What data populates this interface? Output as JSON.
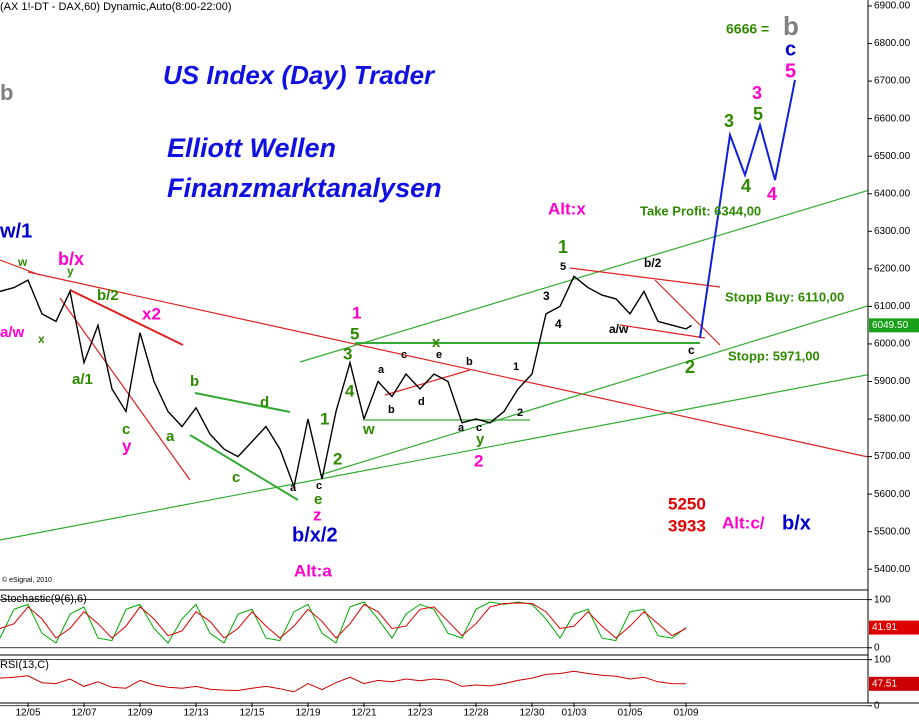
{
  "header": "(AX 1!-DT - DAX,60) Dynamic,Auto(8:00-22:00)",
  "banner": [
    "US Index (Day) Trader",
    "Elliott Wellen",
    "Finanzmarktanalysen"
  ],
  "copyright": "© eSignal, 2010",
  "annotations": [
    {
      "text": "6666 =",
      "color": "#2e8b00"
    },
    {
      "text": "b",
      "color": "#808080"
    },
    {
      "text": "c",
      "color": "#0000cc"
    },
    {
      "text": "5",
      "color": "#ff00cc"
    },
    {
      "text": "3",
      "color": "#ff00cc"
    },
    {
      "text": "3",
      "color": "#2e8b00"
    },
    {
      "text": "5",
      "color": "#2e8b00"
    },
    {
      "text": "4",
      "color": "#2e8b00"
    },
    {
      "text": "4",
      "color": "#ff00cc"
    },
    {
      "text": "Take Profit: 6344,00",
      "color": "#2e8b00"
    },
    {
      "text": "Alt:x",
      "color": "#ff00cc"
    },
    {
      "text": "1",
      "color": "#2e8b00"
    },
    {
      "text": "5",
      "color": "#000000"
    },
    {
      "text": "b/2",
      "color": "#000000"
    },
    {
      "text": "3",
      "color": "#000000"
    },
    {
      "text": "4",
      "color": "#000000"
    },
    {
      "text": "a/w",
      "color": "#000000"
    },
    {
      "text": "Stopp Buy: 6110,00",
      "color": "#2e8b00"
    },
    {
      "text": "c",
      "color": "#000000"
    },
    {
      "text": "Stopp: 5971,00",
      "color": "#2e8b00"
    },
    {
      "text": "2",
      "color": "#2e8b00"
    },
    {
      "text": "w/1",
      "color": "#0000cc"
    },
    {
      "text": "w",
      "color": "#2e8b00"
    },
    {
      "text": "b/x",
      "color": "#ff00cc"
    },
    {
      "text": "y",
      "color": "#2e8b00"
    },
    {
      "text": "b/2",
      "color": "#2e8b00"
    },
    {
      "text": "x2",
      "color": "#ff00cc"
    },
    {
      "text": "a/w",
      "color": "#ff00cc"
    },
    {
      "text": "x",
      "color": "#2e8b00"
    },
    {
      "text": "a/1",
      "color": "#2e8b00"
    },
    {
      "text": "c",
      "color": "#2e8b00"
    },
    {
      "text": "y",
      "color": "#ff00cc"
    },
    {
      "text": "b",
      "color": "#2e8b00"
    },
    {
      "text": "d",
      "color": "#2e8b00"
    },
    {
      "text": "a",
      "color": "#2e8b00"
    },
    {
      "text": "c",
      "color": "#2e8b00"
    },
    {
      "text": "1",
      "color": "#ff00cc"
    },
    {
      "text": "5",
      "color": "#2e8b00"
    },
    {
      "text": "3",
      "color": "#2e8b00"
    },
    {
      "text": "4",
      "color": "#2e8b00"
    },
    {
      "text": "1",
      "color": "#2e8b00"
    },
    {
      "text": "2",
      "color": "#2e8b00"
    },
    {
      "text": "w",
      "color": "#2e8b00"
    },
    {
      "text": "x",
      "color": "#2e8b00"
    },
    {
      "text": "c",
      "color": "#000000"
    },
    {
      "text": "a",
      "color": "#000000"
    },
    {
      "text": "e",
      "color": "#000000"
    },
    {
      "text": "b",
      "color": "#000000"
    },
    {
      "text": "b",
      "color": "#000000"
    },
    {
      "text": "d",
      "color": "#000000"
    },
    {
      "text": "a",
      "color": "#000000"
    },
    {
      "text": "c",
      "color": "#000000"
    },
    {
      "text": "y",
      "color": "#2e8b00"
    },
    {
      "text": "2",
      "color": "#ff00cc"
    },
    {
      "text": "1",
      "color": "#000000"
    },
    {
      "text": "2",
      "color": "#000000"
    },
    {
      "text": "a",
      "color": "#000000"
    },
    {
      "text": "c",
      "color": "#000000"
    },
    {
      "text": "e",
      "color": "#2e8b00"
    },
    {
      "text": "z",
      "color": "#ff00cc"
    },
    {
      "text": "b/x/2",
      "color": "#0000cc"
    },
    {
      "text": "Alt:a",
      "color": "#ff00cc"
    },
    {
      "text": "5250",
      "color": "#e00000"
    },
    {
      "text": "3933",
      "color": "#e00000"
    },
    {
      "text": "Alt:c/",
      "color": "#ff00cc"
    },
    {
      "text": "b/x",
      "color": "#0000cc"
    },
    {
      "text": "b",
      "color": "#808080"
    }
  ],
  "chart_data": [
    {
      "type": "line",
      "title": "DAX 60",
      "x": [
        -1,
        -0.5,
        0,
        0.5,
        1,
        1.5,
        2,
        2.5,
        3,
        3.5,
        4,
        4.5,
        5,
        5.5,
        6,
        6.5,
        7,
        7.5,
        8,
        8.5,
        9,
        9.5,
        10,
        10.5,
        11,
        11.5,
        12,
        12.5,
        13,
        13.5,
        14,
        14.5,
        15,
        15.5,
        16,
        16.5,
        17,
        17.5,
        18,
        18.5,
        19,
        19.5,
        20,
        20.5,
        21,
        21.5,
        22,
        22.5,
        23,
        23.5,
        23.7
      ],
      "values": [
        6140,
        6150,
        6170,
        6080,
        6060,
        6140,
        5950,
        6050,
        5880,
        5820,
        6030,
        5900,
        5820,
        5780,
        5830,
        5760,
        5720,
        5700,
        5740,
        5780,
        5720,
        5620,
        5800,
        5640,
        5820,
        5950,
        5800,
        5900,
        5860,
        5920,
        5880,
        5920,
        5900,
        5790,
        5800,
        5790,
        5820,
        5880,
        5920,
        6080,
        6100,
        6180,
        6150,
        6130,
        6120,
        6080,
        6140,
        6060,
        6050,
        6040,
        6049.5
      ],
      "color": "#000000",
      "last": {
        "value": 6049.5,
        "label": "6049.50"
      },
      "xlim": [
        -1,
        30
      ],
      "xticks": [
        {
          "value": 0,
          "label": "12/05"
        },
        {
          "value": 2,
          "label": "12/07"
        },
        {
          "value": 4,
          "label": "12/09"
        },
        {
          "value": 6,
          "label": "12/13"
        },
        {
          "value": 8,
          "label": "12/15"
        },
        {
          "value": 10,
          "label": "12/19"
        },
        {
          "value": 12,
          "label": "12/21"
        },
        {
          "value": 14,
          "label": "12/23"
        },
        {
          "value": 16,
          "label": "12/28"
        },
        {
          "value": 18,
          "label": "12/30"
        },
        {
          "value": 19.5,
          "label": "01/03"
        },
        {
          "value": 21.5,
          "label": "01/05"
        },
        {
          "value": 23.5,
          "label": "01/09"
        }
      ],
      "ylim": [
        5350,
        6916
      ],
      "yticks": [
        {
          "value": 5400,
          "label": "5400.00"
        },
        {
          "value": 5500,
          "label": "5500.00"
        },
        {
          "value": 5600,
          "label": "5600.00"
        },
        {
          "value": 5700,
          "label": "5700.00"
        },
        {
          "value": 5800,
          "label": "5800.00"
        },
        {
          "value": 5900,
          "label": "5900.00"
        },
        {
          "value": 6000,
          "label": "6000.00"
        },
        {
          "value": 6100,
          "label": "6100.00"
        },
        {
          "value": 6200,
          "label": "6200.00"
        },
        {
          "value": 6300,
          "label": "6300.00"
        },
        {
          "value": 6400,
          "label": "6400.00"
        },
        {
          "value": 6500,
          "label": "6500.00"
        },
        {
          "value": 6600,
          "label": "6600.00"
        },
        {
          "value": 6700,
          "label": "6700.00"
        },
        {
          "value": 6800,
          "label": "6800.00"
        },
        {
          "value": 6900,
          "label": "6900.00"
        }
      ]
    },
    {
      "type": "line",
      "title": "Stochastic(9(6),6)",
      "x": [
        -1,
        -0.5,
        0,
        0.5,
        1,
        1.5,
        2,
        2.5,
        3,
        3.5,
        4,
        4.5,
        5,
        5.5,
        6,
        6.5,
        7,
        7.5,
        8,
        8.5,
        9,
        9.5,
        10,
        10.5,
        11,
        11.5,
        12,
        12.5,
        13,
        13.5,
        14,
        14.5,
        15,
        15.5,
        16,
        16.5,
        17,
        17.5,
        18,
        18.5,
        19,
        19.5,
        20,
        20.5,
        21,
        21.5,
        22,
        22.5,
        23,
        23.5
      ],
      "series": [
        {
          "color": "#00aa00",
          "values": [
            20,
            80,
            90,
            30,
            10,
            70,
            85,
            20,
            15,
            80,
            90,
            40,
            10,
            60,
            90,
            30,
            10,
            70,
            80,
            20,
            15,
            75,
            90,
            30,
            10,
            85,
            95,
            60,
            20,
            70,
            90,
            80,
            30,
            20,
            80,
            95,
            90,
            95,
            90,
            60,
            20,
            70,
            80,
            20,
            15,
            75,
            80,
            25,
            20,
            41.91
          ]
        },
        {
          "color": "#dd0000",
          "values": [
            40,
            50,
            85,
            60,
            20,
            40,
            75,
            50,
            20,
            45,
            85,
            60,
            25,
            35,
            75,
            55,
            20,
            40,
            75,
            45,
            20,
            45,
            80,
            55,
            20,
            50,
            90,
            75,
            40,
            45,
            80,
            85,
            55,
            25,
            50,
            85,
            92,
            93,
            92,
            75,
            40,
            45,
            75,
            45,
            20,
            45,
            75,
            50,
            25,
            40
          ]
        }
      ],
      "last_label": "41.91",
      "ylim": [
        -15,
        120
      ],
      "yticks": [
        0,
        100
      ]
    },
    {
      "type": "line",
      "title": "RSI(13,C)",
      "x": [
        -1,
        -0.5,
        0,
        0.5,
        1,
        1.5,
        2,
        2.5,
        3,
        3.5,
        4,
        4.5,
        5,
        5.5,
        6,
        6.5,
        7,
        7.5,
        8,
        8.5,
        9,
        9.5,
        10,
        10.5,
        11,
        11.5,
        12,
        12.5,
        13,
        13.5,
        14,
        14.5,
        15,
        15.5,
        16,
        16.5,
        17,
        17.5,
        18,
        18.5,
        19,
        19.5,
        20,
        20.5,
        21,
        21.5,
        22,
        22.5,
        23,
        23.5
      ],
      "series": [
        {
          "color": "#cc0000",
          "values": [
            60,
            62,
            65,
            50,
            48,
            58,
            42,
            52,
            40,
            38,
            55,
            45,
            40,
            38,
            42,
            36,
            34,
            33,
            38,
            42,
            37,
            30,
            48,
            35,
            50,
            62,
            48,
            55,
            52,
            58,
            54,
            58,
            55,
            42,
            45,
            43,
            48,
            55,
            60,
            68,
            70,
            75,
            70,
            66,
            64,
            58,
            62,
            52,
            48,
            47.51
          ]
        }
      ],
      "last_label": "47.51",
      "ylim": [
        -20,
        110
      ],
      "yticks": [
        0,
        100
      ]
    }
  ]
}
